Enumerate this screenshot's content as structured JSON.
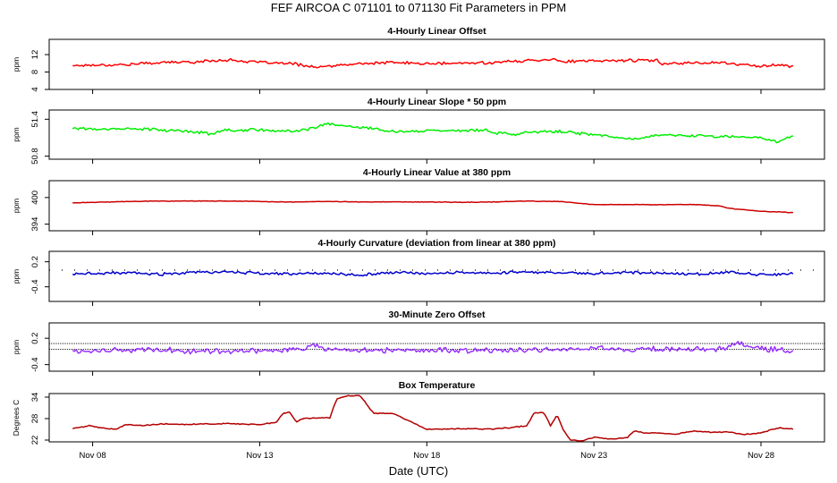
{
  "figure": {
    "title": "FEF   AIRCOA C   071101 to 071130   Fit Parameters in PPM",
    "xlabel": "Date (UTC)"
  },
  "chart_data": [
    {
      "type": "line",
      "title": "4-Hourly Linear Offset",
      "ylabel": "ppm",
      "color": "#ff0000",
      "ylim": [
        4,
        15.5
      ],
      "yticks": [
        "4",
        "8",
        "12"
      ],
      "ytick_values": [
        4,
        8,
        12
      ],
      "xlim": [
        6.7,
        29.9
      ],
      "xticks": [
        "Nov 08",
        "Nov 13",
        "Nov 18",
        "Nov 23",
        "Nov 28"
      ],
      "xtick_values": [
        8,
        13,
        18,
        23,
        28
      ],
      "x": [
        7.4,
        8,
        9,
        10,
        11,
        12,
        13,
        14,
        14.8,
        15,
        16,
        17,
        18,
        19,
        20,
        21,
        21.8,
        22,
        23,
        24,
        24.9,
        25,
        26,
        26.9,
        27,
        28,
        28.5,
        29
      ],
      "values": [
        9.5,
        9.6,
        9.7,
        10.2,
        10.3,
        10.8,
        10.2,
        9.9,
        9.0,
        9.3,
        9.9,
        10.2,
        9.9,
        10.0,
        10.2,
        10.6,
        11.0,
        10.4,
        10.5,
        10.7,
        10.6,
        10.0,
        10.1,
        10.2,
        9.9,
        9.4,
        9.6,
        9.3
      ],
      "noise": 0.35
    },
    {
      "type": "line",
      "title": "4-Hourly Linear Slope * 50 ppm",
      "ylabel": "ppm",
      "color": "#00ee00",
      "ylim": [
        50.75,
        51.55
      ],
      "yticks": [
        "50.8",
        "51.4"
      ],
      "ytick_values": [
        50.8,
        51.4
      ],
      "xlim": [
        6.7,
        29.9
      ],
      "xticks": [
        "Nov 08",
        "Nov 13",
        "Nov 18",
        "Nov 23",
        "Nov 28"
      ],
      "xtick_values": [
        8,
        13,
        18,
        23,
        28
      ],
      "x": [
        7.4,
        8,
        9,
        10,
        11,
        11.6,
        12,
        13,
        14,
        14.6,
        15,
        16,
        17,
        18,
        19,
        19.8,
        20,
        20.7,
        21,
        22,
        23,
        24,
        24.5,
        25,
        26,
        27,
        28,
        28.5,
        29
      ],
      "values": [
        51.26,
        51.24,
        51.25,
        51.23,
        51.2,
        51.16,
        51.22,
        51.23,
        51.2,
        51.25,
        51.32,
        51.27,
        51.2,
        51.22,
        51.21,
        51.23,
        51.18,
        51.15,
        51.19,
        51.2,
        51.15,
        51.08,
        51.1,
        51.15,
        51.13,
        51.12,
        51.1,
        51.04,
        51.13
      ],
      "noise": 0.025
    },
    {
      "type": "line",
      "title": "4-Hourly Linear Value at 380 ppm",
      "ylabel": "ppm",
      "color": "#cc0000",
      "ylim": [
        392.5,
        403.8
      ],
      "yticks": [
        "394",
        "400"
      ],
      "ytick_values": [
        394,
        400
      ],
      "xlim": [
        6.7,
        29.9
      ],
      "xticks": [
        "Nov 08",
        "Nov 13",
        "Nov 18",
        "Nov 23",
        "Nov 28"
      ],
      "xtick_values": [
        8,
        13,
        18,
        23,
        28
      ],
      "x": [
        7.4,
        8,
        9,
        10,
        11,
        12,
        13,
        14,
        15,
        16,
        17,
        18,
        19,
        20,
        21,
        22,
        23,
        24,
        25,
        26,
        26.8,
        27,
        28,
        29
      ],
      "values": [
        398.8,
        398.9,
        399.1,
        399.2,
        399.2,
        399.2,
        399.1,
        399.0,
        399.1,
        399.0,
        399.0,
        399.0,
        398.9,
        399.0,
        399.2,
        399.1,
        398.4,
        398.4,
        398.4,
        398.4,
        398.1,
        397.6,
        396.9,
        396.6
      ],
      "noise": 0.06
    },
    {
      "type": "line",
      "title": "4-Hourly Curvature (deviation from linear at 380 ppm)",
      "ylabel": "ppm",
      "color": "#0000cc",
      "ylim": [
        -0.75,
        0.45
      ],
      "yticks": [
        "-0.4",
        "0.2"
      ],
      "ytick_values": [
        -0.4,
        0.2
      ],
      "xlim": [
        6.7,
        29.9
      ],
      "xticks": [
        "Nov 08",
        "Nov 13",
        "Nov 18",
        "Nov 23",
        "Nov 28"
      ],
      "xtick_values": [
        8,
        13,
        18,
        23,
        28
      ],
      "x": [
        7.4,
        8,
        9,
        10,
        11,
        12,
        13,
        14,
        15,
        16,
        17,
        18,
        19,
        20,
        21,
        22,
        23,
        24,
        25,
        26,
        27,
        28,
        29
      ],
      "values": [
        -0.1,
        -0.08,
        -0.06,
        -0.1,
        -0.06,
        -0.04,
        -0.08,
        -0.09,
        -0.07,
        -0.11,
        -0.06,
        -0.08,
        -0.05,
        -0.07,
        -0.04,
        -0.06,
        -0.08,
        -0.05,
        -0.07,
        -0.1,
        -0.05,
        -0.11,
        -0.08
      ],
      "noise": 0.035,
      "reference": 0.0
    },
    {
      "type": "line",
      "title": "30-Minute Zero Offset",
      "ylabel": "ppm",
      "color": "#9933ff",
      "ylim": [
        -0.55,
        0.55
      ],
      "yticks": [
        "-0.4",
        "0.2"
      ],
      "ytick_values": [
        -0.4,
        0.2
      ],
      "xlim": [
        6.7,
        29.9
      ],
      "xticks": [
        "Nov 08",
        "Nov 13",
        "Nov 18",
        "Nov 23",
        "Nov 28"
      ],
      "xtick_values": [
        8,
        13,
        18,
        23,
        28
      ],
      "x": [
        7.4,
        8,
        9,
        10,
        11,
        12,
        13,
        14,
        14.7,
        15,
        16,
        17,
        18,
        19,
        20,
        21,
        22,
        23,
        24,
        25,
        26,
        27,
        27.3,
        28,
        29
      ],
      "values": [
        -0.1,
        -0.08,
        -0.07,
        -0.05,
        -0.1,
        -0.08,
        -0.07,
        -0.06,
        0.05,
        -0.06,
        -0.08,
        -0.07,
        -0.06,
        -0.07,
        -0.08,
        -0.06,
        -0.05,
        -0.04,
        -0.06,
        -0.05,
        -0.07,
        -0.02,
        0.08,
        -0.04,
        -0.09
      ],
      "noise": 0.07,
      "reference_lines": [
        -0.05,
        0.08
      ]
    },
    {
      "type": "line",
      "title": "Box Temperature",
      "ylabel": "Degrees C",
      "color": "#b30000",
      "ylim": [
        21.5,
        35
      ],
      "yticks": [
        "22",
        "28",
        "34"
      ],
      "ytick_values": [
        22,
        28,
        34
      ],
      "xlim": [
        6.7,
        29.9
      ],
      "xticks": [
        "Nov 08",
        "Nov 13",
        "Nov 18",
        "Nov 23",
        "Nov 28"
      ],
      "xtick_values": [
        8,
        13,
        18,
        23,
        28
      ],
      "x": [
        7.4,
        7.9,
        8.2,
        8.7,
        9,
        9.5,
        10,
        11,
        12,
        13,
        13.5,
        13.7,
        13.9,
        14.1,
        14.3,
        14.6,
        15.1,
        15.3,
        15.6,
        16.0,
        16.4,
        17.0,
        17.3,
        17.6,
        18,
        19,
        20,
        20.5,
        21,
        21.2,
        21.5,
        21.7,
        21.9,
        22.1,
        22.3,
        22.6,
        23,
        23.5,
        24,
        24.2,
        24.5,
        25,
        25.5,
        26,
        26.5,
        27,
        27.5,
        28,
        28.5,
        29
      ],
      "values": [
        25.2,
        26.0,
        25.5,
        25.0,
        26.3,
        26.0,
        26.5,
        26.4,
        26.6,
        26.3,
        27.0,
        29.5,
        29.8,
        27.0,
        28.0,
        28.2,
        28.2,
        33.5,
        34.3,
        34.5,
        29.5,
        29.5,
        28.0,
        26.8,
        25.0,
        25.2,
        25.1,
        25.5,
        26.0,
        29.5,
        29.8,
        26.0,
        29.0,
        24.5,
        22.0,
        21.7,
        22.8,
        22.3,
        22.6,
        24.6,
        24.0,
        23.9,
        23.7,
        24.6,
        24.2,
        24.2,
        23.6,
        24.0,
        25.4,
        25.0
      ],
      "noise": 0.15
    }
  ]
}
